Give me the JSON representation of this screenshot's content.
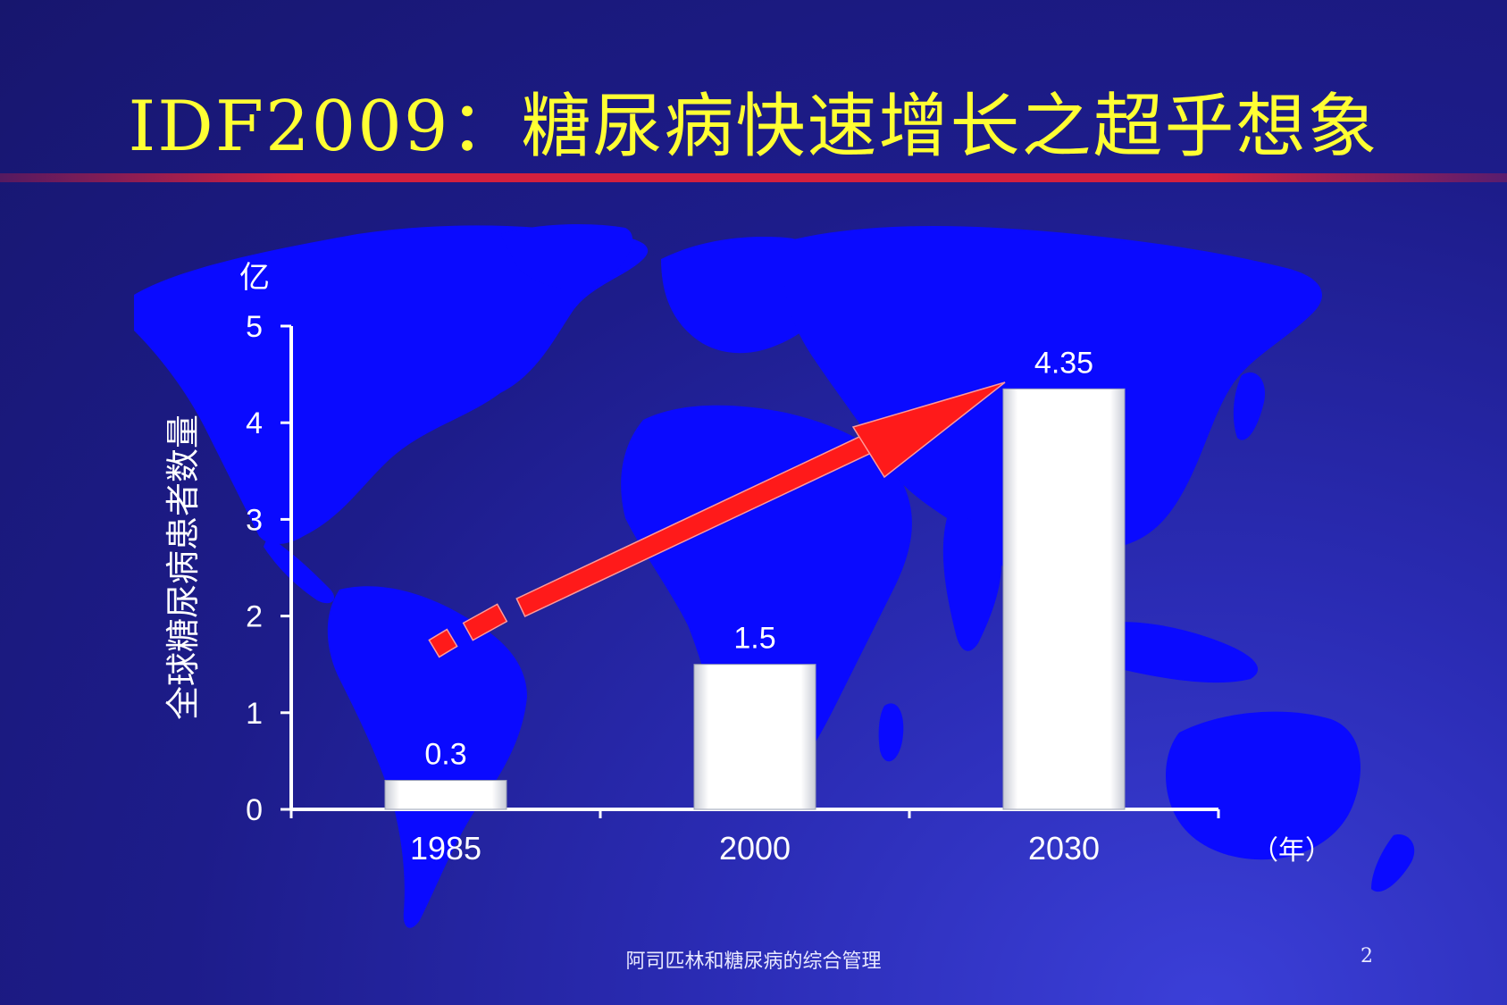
{
  "slide": {
    "title": "IDF2009：糖尿病快速增长之超乎想象",
    "footer": "阿司匹林和糖尿病的综合管理",
    "page_number": "2"
  },
  "chart_data": {
    "type": "bar",
    "categories": [
      "1985",
      "2000",
      "2030"
    ],
    "values": [
      0.3,
      1.5,
      4.35
    ],
    "data_labels": [
      "0.3",
      "1.5",
      "4.35"
    ],
    "ylabel": "全球糖尿病患者数量",
    "yunit": "亿",
    "xunit": "（年）",
    "ylim": [
      0,
      5
    ],
    "yticks": [
      0,
      1,
      2,
      3,
      4,
      5
    ],
    "grid": false,
    "annotation": "red trend arrow from 1985 rising to 2030",
    "colors": {
      "bar": "#ffffff",
      "axis": "#ffffff",
      "arrow": "#ff1a1a",
      "map": "#0a0aff",
      "title": "#ffff33"
    }
  }
}
